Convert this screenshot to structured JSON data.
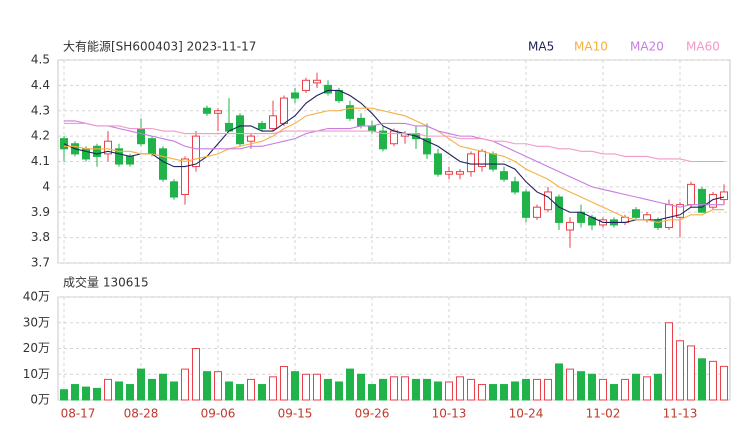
{
  "chart_data": [
    {
      "type": "candlestick",
      "title": "大有能源[SH600403] 2023-11-17",
      "categories": [
        "08-17",
        null,
        null,
        null,
        null,
        null,
        null,
        "08-28",
        null,
        null,
        null,
        null,
        null,
        null,
        "09-06",
        null,
        null,
        null,
        null,
        null,
        null,
        "09-15",
        null,
        null,
        null,
        null,
        null,
        null,
        "09-26",
        null,
        null,
        null,
        null,
        null,
        null,
        "10-13",
        null,
        null,
        null,
        null,
        null,
        null,
        "10-24",
        null,
        null,
        null,
        null,
        null,
        null,
        "11-02",
        null,
        null,
        null,
        null,
        null,
        null,
        "11-13",
        null,
        null,
        null,
        null
      ],
      "open": [
        4.19,
        4.17,
        4.15,
        4.16,
        4.13,
        4.15,
        4.12,
        4.23,
        4.19,
        4.15,
        4.02,
        3.97,
        4.08,
        4.31,
        4.29,
        4.25,
        4.28,
        4.18,
        4.25,
        4.23,
        4.25,
        4.37,
        4.38,
        4.41,
        4.4,
        4.38,
        4.32,
        4.27,
        4.24,
        4.22,
        4.17,
        4.2,
        4.21,
        4.19,
        4.13,
        4.05,
        4.05,
        4.06,
        4.08,
        4.13,
        4.06,
        4.02,
        3.98,
        3.88,
        3.91,
        3.96,
        3.83,
        3.9,
        3.88,
        3.85,
        3.87,
        3.86,
        3.91,
        3.87,
        3.87,
        3.84,
        3.88,
        3.93,
        3.99,
        3.92,
        3.95
      ],
      "high": [
        4.2,
        4.18,
        4.16,
        4.17,
        4.22,
        4.17,
        4.13,
        4.27,
        4.2,
        4.16,
        4.03,
        4.12,
        4.22,
        4.32,
        4.31,
        4.35,
        4.29,
        4.21,
        4.26,
        4.34,
        4.36,
        4.39,
        4.43,
        4.45,
        4.42,
        4.39,
        4.34,
        4.29,
        4.26,
        4.24,
        4.23,
        4.22,
        4.24,
        4.25,
        4.15,
        4.08,
        4.07,
        4.14,
        4.15,
        4.14,
        4.08,
        4.04,
        3.99,
        3.93,
        4.0,
        3.97,
        3.88,
        3.93,
        3.89,
        3.88,
        3.88,
        3.89,
        3.92,
        3.9,
        3.88,
        3.95,
        3.94,
        4.02,
        4.0,
        3.98,
        4.01
      ],
      "low": [
        4.1,
        4.12,
        4.1,
        4.08,
        4.1,
        4.08,
        4.08,
        4.16,
        4.12,
        4.02,
        3.95,
        3.93,
        4.06,
        4.28,
        4.22,
        4.22,
        4.16,
        4.15,
        4.22,
        4.22,
        4.24,
        4.33,
        4.37,
        4.39,
        4.36,
        4.33,
        4.26,
        4.23,
        4.21,
        4.14,
        4.16,
        4.17,
        4.15,
        4.11,
        4.04,
        4.03,
        4.03,
        4.04,
        4.06,
        4.06,
        4.02,
        3.97,
        3.86,
        3.87,
        3.9,
        3.83,
        3.76,
        3.84,
        3.83,
        3.84,
        3.84,
        3.85,
        3.87,
        3.86,
        3.83,
        3.83,
        3.8,
        3.92,
        3.9,
        3.91,
        3.93
      ],
      "close": [
        4.15,
        4.13,
        4.11,
        4.12,
        4.18,
        4.09,
        4.09,
        4.17,
        4.13,
        4.03,
        3.96,
        4.11,
        4.2,
        4.29,
        4.3,
        4.22,
        4.17,
        4.2,
        4.23,
        4.28,
        4.35,
        4.35,
        4.42,
        4.42,
        4.37,
        4.34,
        4.27,
        4.24,
        4.22,
        4.15,
        4.22,
        4.21,
        4.19,
        4.13,
        4.05,
        4.06,
        4.06,
        4.13,
        4.14,
        4.07,
        4.03,
        3.98,
        3.88,
        3.92,
        3.98,
        3.86,
        3.86,
        3.86,
        3.85,
        3.87,
        3.85,
        3.88,
        3.88,
        3.89,
        3.84,
        3.93,
        3.93,
        4.01,
        3.9,
        3.97,
        3.98
      ],
      "up_color": "#e8414a",
      "down_color": "#1fb34a",
      "series": [
        {
          "name": "MA5",
          "color": "#22225e",
          "values": [
            4.17,
            4.15,
            4.14,
            4.13,
            4.14,
            4.13,
            4.12,
            4.13,
            4.13,
            4.1,
            4.08,
            4.08,
            4.09,
            4.12,
            4.17,
            4.22,
            4.24,
            4.24,
            4.22,
            4.22,
            4.25,
            4.28,
            4.33,
            4.36,
            4.38,
            4.38,
            4.36,
            4.33,
            4.29,
            4.24,
            4.22,
            4.21,
            4.2,
            4.18,
            4.16,
            4.13,
            4.1,
            4.09,
            4.09,
            4.09,
            4.09,
            4.07,
            4.02,
            3.98,
            3.96,
            3.92,
            3.9,
            3.9,
            3.88,
            3.86,
            3.86,
            3.86,
            3.87,
            3.87,
            3.87,
            3.88,
            3.89,
            3.92,
            3.92,
            3.95,
            3.96
          ]
        },
        {
          "name": "MA10",
          "color": "#f5b041",
          "values": [
            4.16,
            4.16,
            4.15,
            4.15,
            4.15,
            4.14,
            4.14,
            4.13,
            4.13,
            4.12,
            4.11,
            4.1,
            4.11,
            4.12,
            4.13,
            4.15,
            4.16,
            4.17,
            4.18,
            4.2,
            4.23,
            4.25,
            4.28,
            4.29,
            4.3,
            4.3,
            4.31,
            4.31,
            4.31,
            4.3,
            4.29,
            4.28,
            4.26,
            4.24,
            4.22,
            4.19,
            4.16,
            4.15,
            4.14,
            4.13,
            4.12,
            4.1,
            4.07,
            4.05,
            4.03,
            4.0,
            3.98,
            3.96,
            3.94,
            3.92,
            3.9,
            3.88,
            3.87,
            3.87,
            3.86,
            3.87,
            3.87,
            3.89,
            3.89,
            3.91,
            3.91
          ]
        },
        {
          "name": "MA20",
          "color": "#c77de0",
          "values": [
            4.26,
            4.26,
            4.25,
            4.24,
            4.24,
            4.23,
            4.22,
            4.21,
            4.2,
            4.19,
            4.18,
            4.16,
            4.15,
            4.15,
            4.15,
            4.15,
            4.15,
            4.16,
            4.16,
            4.17,
            4.18,
            4.19,
            4.21,
            4.22,
            4.23,
            4.23,
            4.23,
            4.24,
            4.24,
            4.25,
            4.25,
            4.25,
            4.24,
            4.24,
            4.22,
            4.21,
            4.2,
            4.2,
            4.19,
            4.18,
            4.16,
            4.14,
            4.12,
            4.1,
            4.08,
            4.06,
            4.04,
            4.02,
            4.0,
            3.99,
            3.98,
            3.97,
            3.96,
            3.95,
            3.94,
            3.93,
            3.92,
            3.93,
            3.93,
            3.93,
            3.93
          ]
        },
        {
          "name": "MA60",
          "color": "#f29ac8",
          "values": [
            4.25,
            4.25,
            4.25,
            4.24,
            4.24,
            4.24,
            4.23,
            4.23,
            4.23,
            4.22,
            4.22,
            4.21,
            4.21,
            4.21,
            4.21,
            4.21,
            4.21,
            4.21,
            4.21,
            4.21,
            4.22,
            4.22,
            4.22,
            4.22,
            4.22,
            4.22,
            4.22,
            4.22,
            4.22,
            4.21,
            4.21,
            4.21,
            4.21,
            4.2,
            4.2,
            4.2,
            4.19,
            4.19,
            4.19,
            4.18,
            4.18,
            4.17,
            4.17,
            4.16,
            4.16,
            4.15,
            4.15,
            4.14,
            4.14,
            4.13,
            4.13,
            4.12,
            4.12,
            4.12,
            4.11,
            4.11,
            4.11,
            4.1,
            4.1,
            4.1,
            4.1
          ]
        }
      ],
      "ylim": [
        3.7,
        4.5
      ],
      "yticks": [
        3.7,
        3.8,
        3.9,
        4,
        4.1,
        4.2,
        4.3,
        4.4,
        4.5
      ],
      "grid": true
    },
    {
      "type": "bar",
      "title": "成交量 130615",
      "values": [
        4,
        6,
        5,
        4.5,
        8,
        7,
        6,
        12,
        8,
        10,
        7,
        12,
        20,
        11,
        11,
        7,
        6,
        8,
        6,
        9,
        13,
        11,
        10,
        10,
        8,
        7,
        12,
        10,
        6,
        8,
        9,
        9,
        8,
        8,
        7,
        7,
        9,
        8,
        6,
        6,
        6,
        7,
        8,
        8,
        8,
        14,
        12,
        11,
        10,
        8,
        6,
        8,
        10,
        9,
        10,
        30,
        23,
        21,
        16,
        15,
        13.06
      ],
      "ylim": [
        0,
        40
      ],
      "yticks": [
        {
          "value": 0,
          "label": "0万"
        },
        {
          "value": 10,
          "label": "10万"
        },
        {
          "value": 20,
          "label": "20万"
        },
        {
          "value": 30,
          "label": "30万"
        },
        {
          "value": 40,
          "label": "40万"
        }
      ],
      "grid": true
    }
  ]
}
